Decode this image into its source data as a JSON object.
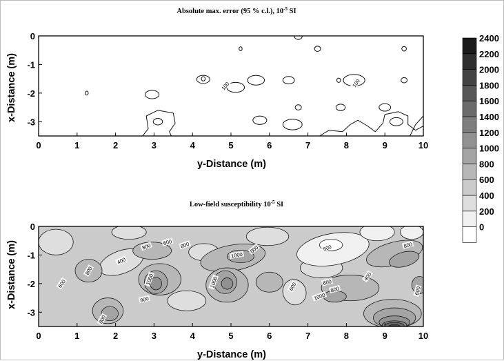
{
  "chart_data": [
    {
      "type": "contour",
      "title": "Absolute max. error (95 % c.l.), 10",
      "title_exp": "-5",
      "title_unit": " SI",
      "xlabel": "y-Distance (m)",
      "ylabel": "x-Distance (m)",
      "xlim": [
        0,
        10
      ],
      "ylim": [
        -3.5,
        0
      ],
      "xticks": [
        0,
        1,
        2,
        3,
        4,
        5,
        6,
        7,
        8,
        9,
        10
      ],
      "yticks": [
        0,
        -1,
        -2,
        -3
      ],
      "contour_labels": [
        {
          "x": 4.85,
          "y": -1.75,
          "text": "100",
          "angle": -50
        },
        {
          "x": 8.25,
          "y": -1.65,
          "text": "100",
          "angle": -55
        }
      ],
      "contours": [
        {
          "x": 4.28,
          "y": -1.52,
          "r": 0.17,
          "rotate": 0
        },
        {
          "x": 4.28,
          "y": -1.5,
          "r": 0.05,
          "rotate": 0
        },
        {
          "x": 5.12,
          "y": -1.8,
          "r": 0.23,
          "rotate": 0
        },
        {
          "x": 5.65,
          "y": -1.55,
          "r": 0.22,
          "rotate": 0
        },
        {
          "x": 6.5,
          "y": -1.55,
          "r": 0.15,
          "rotate": 0
        },
        {
          "x": 7.25,
          "y": -0.45,
          "r": 0.08,
          "rotate": 0
        },
        {
          "x": 6.75,
          "y": -2.5,
          "r": 0.08,
          "rotate": 0
        },
        {
          "x": 7.85,
          "y": -2.5,
          "r": 0.12,
          "rotate": 0
        },
        {
          "x": 8.2,
          "y": -1.55,
          "r": 0.28,
          "rotate": 0
        },
        {
          "x": 9.0,
          "y": -2.5,
          "r": 0.15,
          "rotate": 0
        },
        {
          "x": 9.5,
          "y": -0.45,
          "r": 0.06,
          "rotate": 0
        },
        {
          "x": 9.5,
          "y": -1.55,
          "r": 0.08,
          "rotate": 0
        },
        {
          "x": 7.8,
          "y": -1.55,
          "r": 0.05,
          "rotate": 0
        },
        {
          "x": 5.25,
          "y": -0.45,
          "r": 0.04,
          "rotate": 0
        },
        {
          "x": 5.75,
          "y": -2.95,
          "r": 0.18,
          "rotate": 0
        },
        {
          "x": 6.6,
          "y": -3.1,
          "r": 0.25,
          "rotate": 0
        },
        {
          "x": 2.95,
          "y": -2.05,
          "r": 0.18,
          "rotate": 0
        },
        {
          "x": 3.1,
          "y": -3.0,
          "r": 0.12,
          "rotate": 0
        },
        {
          "x": 9.3,
          "y": -3.0,
          "r": 0.17,
          "rotate": 0
        },
        {
          "x": 1.25,
          "y": -2.0,
          "r": 0.04,
          "rotate": 0
        },
        {
          "x": 6.75,
          "y": -0.02,
          "r": 0.1,
          "rotate": 0
        }
      ],
      "contour_paths": [
        [
          [
            2.7,
            -3.5
          ],
          [
            2.85,
            -3.25
          ],
          [
            2.8,
            -2.8
          ],
          [
            3.1,
            -2.6
          ],
          [
            3.5,
            -2.7
          ],
          [
            3.55,
            -3.05
          ],
          [
            3.4,
            -3.35
          ],
          [
            3.45,
            -3.5
          ]
        ],
        [
          [
            7.3,
            -3.5
          ],
          [
            7.55,
            -3.3
          ],
          [
            7.9,
            -3.35
          ],
          [
            8.1,
            -3.1
          ],
          [
            8.3,
            -2.95
          ],
          [
            8.55,
            -3.15
          ],
          [
            8.75,
            -3.35
          ],
          [
            8.95,
            -3.05
          ],
          [
            9.0,
            -2.75
          ],
          [
            9.35,
            -2.65
          ],
          [
            9.6,
            -2.8
          ],
          [
            9.6,
            -3.1
          ],
          [
            9.8,
            -3.3
          ],
          [
            10.0,
            -3.15
          ]
        ],
        [
          [
            9.65,
            -3.5
          ],
          [
            9.8,
            -3.1
          ],
          [
            10.0,
            -2.8
          ]
        ]
      ]
    },
    {
      "type": "filled-contour",
      "title": "Low-field susceptibility 10",
      "title_exp": "-5",
      "title_unit": " SI",
      "xlabel": "y-Distance (m)",
      "ylabel": "x-Distance (m)",
      "xlim": [
        0,
        10
      ],
      "ylim": [
        -3.5,
        0
      ],
      "xticks": [
        0,
        1,
        2,
        3,
        4,
        5,
        6,
        7,
        8,
        9,
        10
      ],
      "yticks": [
        0,
        -1,
        -2,
        -3
      ],
      "levels": [
        0,
        200,
        400,
        600,
        800,
        1000,
        1200,
        1400,
        1600,
        1800,
        2000,
        2200,
        2400
      ],
      "background_level": 600,
      "contour_labels": [
        {
          "x": 0.6,
          "y": -2.0,
          "text": "600",
          "angle": -55
        },
        {
          "x": 1.3,
          "y": -1.55,
          "text": "800",
          "angle": -60
        },
        {
          "x": 2.15,
          "y": -1.2,
          "text": "400",
          "angle": -25
        },
        {
          "x": 2.8,
          "y": -0.7,
          "text": "800",
          "angle": -20
        },
        {
          "x": 3.35,
          "y": -0.55,
          "text": "600",
          "angle": -15
        },
        {
          "x": 3.8,
          "y": -0.65,
          "text": "800",
          "angle": -20
        },
        {
          "x": 2.88,
          "y": -1.85,
          "text": "1000",
          "angle": -70
        },
        {
          "x": 2.75,
          "y": -2.55,
          "text": "800",
          "angle": -15
        },
        {
          "x": 1.65,
          "y": -3.25,
          "text": "800",
          "angle": -60
        },
        {
          "x": 4.55,
          "y": -1.95,
          "text": "1000",
          "angle": -70
        },
        {
          "x": 5.15,
          "y": -1.0,
          "text": "1000",
          "angle": -10
        },
        {
          "x": 5.6,
          "y": -0.8,
          "text": "800",
          "angle": -40
        },
        {
          "x": 6.6,
          "y": -2.1,
          "text": "600",
          "angle": -60
        },
        {
          "x": 7.5,
          "y": -0.75,
          "text": "500",
          "angle": -20
        },
        {
          "x": 7.5,
          "y": -1.95,
          "text": "600",
          "angle": -15
        },
        {
          "x": 7.7,
          "y": -2.2,
          "text": "800",
          "angle": -15
        },
        {
          "x": 7.3,
          "y": -2.45,
          "text": "1000",
          "angle": -20
        },
        {
          "x": 8.55,
          "y": -1.75,
          "text": "400",
          "angle": -55
        },
        {
          "x": 9.6,
          "y": -0.65,
          "text": "800",
          "angle": -15
        },
        {
          "x": 9.85,
          "y": -2.25,
          "text": "600",
          "angle": -75
        }
      ],
      "regions": [
        {
          "level": 400,
          "x": 0.45,
          "y": -0.55,
          "rx": 0.45,
          "ry": 0.45,
          "rotate": 0
        },
        {
          "level": 400,
          "x": 2.15,
          "y": -1.25,
          "rx": 0.6,
          "ry": 0.4,
          "rotate": -20
        },
        {
          "level": 400,
          "x": 2.35,
          "y": -0.2,
          "rx": 0.45,
          "ry": 0.25,
          "rotate": 0
        },
        {
          "level": 400,
          "x": 4.3,
          "y": -0.9,
          "rx": 0.4,
          "ry": 0.3,
          "rotate": 0
        },
        {
          "level": 400,
          "x": 3.85,
          "y": -2.6,
          "rx": 0.5,
          "ry": 0.35,
          "rotate": 0
        },
        {
          "level": 400,
          "x": 5.95,
          "y": -0.35,
          "rx": 0.55,
          "ry": 0.32,
          "rotate": 0
        },
        {
          "level": 400,
          "x": 6.65,
          "y": -2.3,
          "rx": 0.3,
          "ry": 0.45,
          "rotate": -20
        },
        {
          "level": 400,
          "x": 7.35,
          "y": -1.45,
          "rx": 0.55,
          "ry": 0.35,
          "rotate": 0
        },
        {
          "level": 200,
          "x": 7.65,
          "y": -0.8,
          "rx": 0.95,
          "ry": 0.55,
          "rotate": -10
        },
        {
          "level": 200,
          "x": 8.8,
          "y": -0.2,
          "rx": 0.45,
          "ry": 0.3,
          "rotate": 0
        },
        {
          "level": 200,
          "x": 9.7,
          "y": -0.2,
          "rx": 0.3,
          "ry": 0.25,
          "rotate": 0
        },
        {
          "level": 0,
          "x": 7.6,
          "y": -0.65,
          "rx": 0.3,
          "ry": 0.2,
          "rotate": 0
        },
        {
          "level": 800,
          "x": 1.3,
          "y": -1.55,
          "rx": 0.35,
          "ry": 0.4,
          "rotate": 0
        },
        {
          "level": 800,
          "x": 2.95,
          "y": -0.85,
          "rx": 0.5,
          "ry": 0.3,
          "rotate": 0
        },
        {
          "level": 800,
          "x": 3.15,
          "y": -1.85,
          "rx": 0.55,
          "ry": 0.55,
          "rotate": 0
        },
        {
          "level": 800,
          "x": 5.05,
          "y": -1.1,
          "rx": 0.85,
          "ry": 0.45,
          "rotate": -10
        },
        {
          "level": 800,
          "x": 4.9,
          "y": -2.05,
          "rx": 0.55,
          "ry": 0.6,
          "rotate": 0
        },
        {
          "level": 800,
          "x": 6.0,
          "y": -1.95,
          "rx": 0.35,
          "ry": 0.35,
          "rotate": 0
        },
        {
          "level": 800,
          "x": 8.1,
          "y": -2.15,
          "rx": 0.75,
          "ry": 0.45,
          "rotate": 0
        },
        {
          "level": 800,
          "x": 9.25,
          "y": -0.95,
          "rx": 0.75,
          "ry": 0.4,
          "rotate": -15
        },
        {
          "level": 800,
          "x": 1.8,
          "y": -2.95,
          "rx": 0.4,
          "ry": 0.45,
          "rotate": 0
        },
        {
          "level": 800,
          "x": 9.2,
          "y": -3.05,
          "rx": 0.75,
          "ry": 0.5,
          "rotate": 0
        },
        {
          "level": 1000,
          "x": 3.05,
          "y": -1.95,
          "rx": 0.3,
          "ry": 0.4,
          "rotate": 0
        },
        {
          "level": 1000,
          "x": 4.85,
          "y": -1.95,
          "rx": 0.3,
          "ry": 0.4,
          "rotate": 0
        },
        {
          "level": 1000,
          "x": 5.25,
          "y": -1.05,
          "rx": 0.35,
          "ry": 0.22,
          "rotate": 0
        },
        {
          "level": 1000,
          "x": 7.7,
          "y": -2.45,
          "rx": 0.3,
          "ry": 0.2,
          "rotate": 0
        },
        {
          "level": 1000,
          "x": 9.5,
          "y": -1.15,
          "rx": 0.4,
          "ry": 0.25,
          "rotate": -15
        },
        {
          "level": 1000,
          "x": 9.9,
          "y": -2.05,
          "rx": 0.2,
          "ry": 0.3,
          "rotate": 0
        },
        {
          "level": 1000,
          "x": 1.85,
          "y": -3.05,
          "rx": 0.22,
          "ry": 0.25,
          "rotate": 0
        },
        {
          "level": 1000,
          "x": 9.25,
          "y": -3.2,
          "rx": 0.55,
          "ry": 0.35,
          "rotate": 0
        },
        {
          "level": 1200,
          "x": 3.05,
          "y": -2.0,
          "rx": 0.15,
          "ry": 0.22,
          "rotate": 0
        },
        {
          "level": 1200,
          "x": 4.9,
          "y": -2.0,
          "rx": 0.15,
          "ry": 0.2,
          "rotate": 0
        },
        {
          "level": 1200,
          "x": 9.25,
          "y": -3.35,
          "rx": 0.4,
          "ry": 0.22,
          "rotate": 0
        },
        {
          "level": 1400,
          "x": 9.25,
          "y": -3.45,
          "rx": 0.32,
          "ry": 0.15,
          "rotate": 0
        },
        {
          "level": 1600,
          "x": 9.25,
          "y": -3.48,
          "rx": 0.25,
          "ry": 0.12,
          "rotate": 0
        },
        {
          "level": 2000,
          "x": 9.25,
          "y": -3.5,
          "rx": 0.15,
          "ry": 0.07,
          "rotate": 0
        }
      ]
    }
  ],
  "colorbar": {
    "ticks": [
      "0",
      "200",
      "400",
      "600",
      "800",
      "1000",
      "1200",
      "1400",
      "1600",
      "1800",
      "2000",
      "2200",
      "2400"
    ],
    "colors": [
      "#ffffff",
      "#f0f0f0",
      "#dedede",
      "#cbcbcb",
      "#b7b7b7",
      "#a4a4a4",
      "#919191",
      "#7e7e7e",
      "#6b6b6b",
      "#575757",
      "#434343",
      "#2f2f2f",
      "#1a1a1a"
    ]
  }
}
